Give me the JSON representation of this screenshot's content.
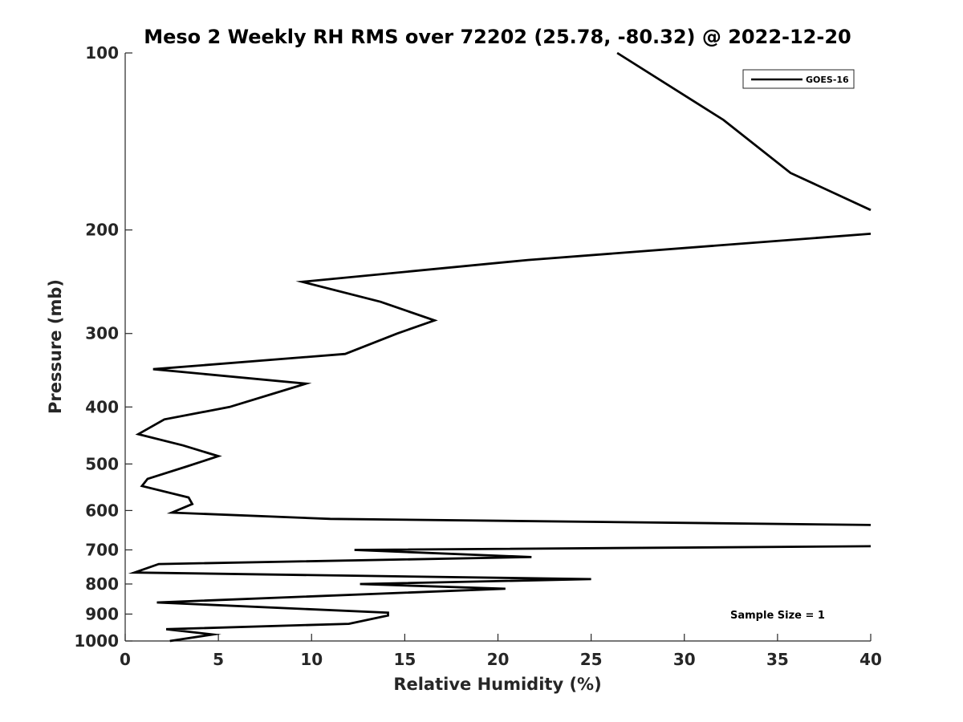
{
  "chart_data": {
    "type": "line",
    "title": "Meso 2 Weekly RH RMS over 72202 (25.78, -80.32) @ 2022-12-20",
    "xlabel": "Relative Humidity (%)",
    "ylabel": "Pressure (mb)",
    "xlim": [
      0,
      40
    ],
    "ylim": [
      100,
      1000
    ],
    "yscale": "log",
    "reverse_y": true,
    "x_ticks": [
      0,
      5,
      10,
      15,
      20,
      25,
      30,
      35,
      40
    ],
    "y_ticks": [
      100,
      200,
      300,
      400,
      500,
      600,
      700,
      800,
      900,
      1000
    ],
    "grid": false,
    "legend_position": "top-right",
    "annotation": "Sample Size = 1",
    "series": [
      {
        "name": "GOES-16",
        "color": "#000000",
        "x": [
          26.4,
          32.1,
          35.7,
          40.0,
          null,
          40.0,
          21.6,
          9.5,
          13.7,
          16.6,
          14.6,
          11.8,
          1.5,
          9.7,
          7.9,
          5.6,
          2.1,
          0.7,
          3.1,
          5.0,
          3.3,
          1.2,
          0.9,
          3.4,
          3.6,
          2.5,
          11.0,
          40.0,
          null,
          40.0,
          12.3,
          21.8,
          1.8,
          0.5,
          25.0,
          12.6,
          20.4,
          1.7,
          14.1,
          14.1,
          12.0,
          2.2,
          4.7,
          2.4
        ],
        "y": [
          100,
          130,
          160,
          185,
          null,
          203,
          225,
          245,
          265,
          285,
          300,
          325,
          345,
          365,
          380,
          400,
          420,
          445,
          465,
          485,
          505,
          530,
          545,
          570,
          585,
          605,
          620,
          635,
          null,
          690,
          700,
          720,
          740,
          765,
          785,
          800,
          815,
          860,
          895,
          905,
          935,
          955,
          975,
          1000
        ]
      }
    ]
  }
}
